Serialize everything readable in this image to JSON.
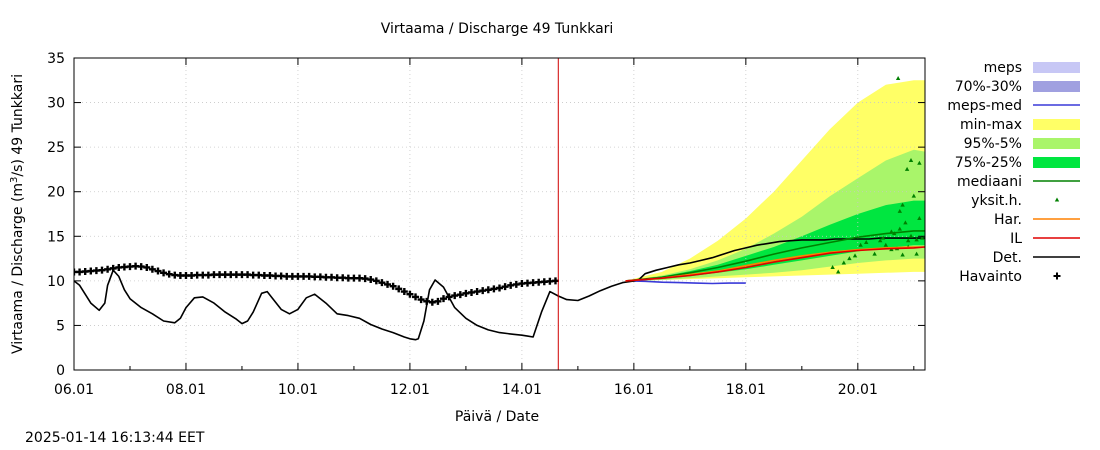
{
  "chart_data": {
    "type": "line",
    "title": "Virtaama / Discharge  49 Tunkkari",
    "ylabel_parts": [
      "Virtaama / Discharge (m",
      "3",
      "/s)  49 Tunkkari"
    ],
    "xlabel": "Päivä / Date",
    "x_unit": "days since 06.01",
    "xlim": [
      0,
      15.2
    ],
    "ylim": [
      0,
      35
    ],
    "yticks": [
      0,
      5,
      10,
      15,
      20,
      25,
      30,
      35
    ],
    "xticks": [
      {
        "x": 0,
        "label": "06.01"
      },
      {
        "x": 2,
        "label": "08.01"
      },
      {
        "x": 4,
        "label": "10.01"
      },
      {
        "x": 6,
        "label": "12.01"
      },
      {
        "x": 8,
        "label": "14.01"
      },
      {
        "x": 10,
        "label": "16.01"
      },
      {
        "x": 12,
        "label": "18.01"
      },
      {
        "x": 14,
        "label": "20.01"
      }
    ],
    "now_x": 8.65,
    "legend": [
      {
        "label": "meps",
        "kind": "band",
        "color": "#c7c7f5"
      },
      {
        "label": "70%-30%",
        "kind": "band",
        "color": "#a0a0e0"
      },
      {
        "label": "meps-med",
        "kind": "line",
        "color": "#3a3ad8"
      },
      {
        "label": "min-max",
        "kind": "band",
        "color": "#ffff66"
      },
      {
        "label": "95%-5%",
        "kind": "band",
        "color": "#a9f56a"
      },
      {
        "label": "75%-25%",
        "kind": "band",
        "color": "#00e640"
      },
      {
        "label": "mediaani",
        "kind": "line",
        "color": "#008000"
      },
      {
        "label": "yksit.h.",
        "kind": "marker",
        "color": "#008000"
      },
      {
        "label": "Har.",
        "kind": "line",
        "color": "#ff8000"
      },
      {
        "label": "IL",
        "kind": "line",
        "color": "#e00000"
      },
      {
        "label": "Det.",
        "kind": "line",
        "color": "#000000"
      },
      {
        "label": "Havainto",
        "kind": "plus",
        "color": "#000000"
      }
    ],
    "bands": {
      "x": [
        9.85,
        10.5,
        11,
        11.5,
        12,
        12.5,
        13,
        13.5,
        14,
        14.5,
        15,
        15.2
      ],
      "minmax_lo": [
        10.0,
        10.1,
        10.2,
        10.3,
        10.4,
        10.5,
        10.6,
        10.7,
        10.8,
        10.9,
        11.0,
        11.0
      ],
      "minmax_hi": [
        10.0,
        11.0,
        12.5,
        14.5,
        17.0,
        20.0,
        23.5,
        27.0,
        30.0,
        32.0,
        32.5,
        32.5
      ],
      "p95_lo": [
        10.0,
        10.1,
        10.3,
        10.5,
        10.7,
        10.9,
        11.2,
        11.6,
        12.0,
        12.3,
        12.5,
        12.5
      ],
      "p95_hi": [
        10.0,
        10.6,
        11.3,
        12.3,
        13.6,
        15.3,
        17.2,
        19.5,
        21.5,
        23.5,
        24.7,
        24.5
      ],
      "p75_lo": [
        10.0,
        10.2,
        10.5,
        10.9,
        11.3,
        11.8,
        12.3,
        12.8,
        13.3,
        13.7,
        14.0,
        14.0
      ],
      "p75_hi": [
        10.0,
        10.5,
        11.1,
        11.8,
        12.8,
        13.8,
        15.0,
        16.3,
        17.5,
        18.5,
        19.0,
        19.0
      ]
    },
    "series": [
      {
        "name": "Havainto",
        "style": "plus",
        "color": "#000000",
        "x": [
          0,
          0.1,
          0.2,
          0.3,
          0.4,
          0.5,
          0.6,
          0.7,
          0.8,
          0.9,
          1.0,
          1.1,
          1.2,
          1.3,
          1.4,
          1.5,
          1.6,
          1.7,
          1.8,
          1.9,
          2.0,
          2.1,
          2.2,
          2.3,
          2.4,
          2.5,
          2.6,
          2.7,
          2.8,
          2.9,
          3.0,
          3.1,
          3.2,
          3.3,
          3.4,
          3.5,
          3.6,
          3.7,
          3.8,
          3.9,
          4.0,
          4.1,
          4.2,
          4.3,
          4.4,
          4.5,
          4.6,
          4.7,
          4.8,
          4.9,
          5.0,
          5.1,
          5.2,
          5.3,
          5.4,
          5.5,
          5.6,
          5.7,
          5.8,
          5.9,
          6.0,
          6.1,
          6.2,
          6.3,
          6.4,
          6.5,
          6.6,
          6.7,
          6.8,
          6.9,
          7.0,
          7.1,
          7.2,
          7.3,
          7.4,
          7.5,
          7.6,
          7.7,
          7.8,
          7.9,
          8.0,
          8.1,
          8.2,
          8.3,
          8.4,
          8.5,
          8.6
        ],
        "y": [
          11.0,
          11.0,
          11.05,
          11.1,
          11.15,
          11.2,
          11.3,
          11.4,
          11.5,
          11.55,
          11.6,
          11.65,
          11.6,
          11.5,
          11.3,
          11.1,
          10.9,
          10.75,
          10.65,
          10.6,
          10.6,
          10.6,
          10.65,
          10.65,
          10.65,
          10.7,
          10.7,
          10.7,
          10.7,
          10.7,
          10.7,
          10.7,
          10.65,
          10.65,
          10.6,
          10.6,
          10.55,
          10.55,
          10.5,
          10.5,
          10.5,
          10.5,
          10.5,
          10.45,
          10.45,
          10.4,
          10.4,
          10.35,
          10.35,
          10.3,
          10.3,
          10.3,
          10.25,
          10.15,
          10.0,
          9.8,
          9.6,
          9.4,
          9.1,
          8.8,
          8.5,
          8.2,
          7.9,
          7.7,
          7.6,
          7.7,
          8.0,
          8.2,
          8.35,
          8.45,
          8.6,
          8.7,
          8.8,
          8.9,
          9.0,
          9.1,
          9.2,
          9.35,
          9.5,
          9.6,
          9.7,
          9.75,
          9.8,
          9.85,
          9.9,
          9.95,
          10.0
        ]
      },
      {
        "name": "Det.",
        "style": "line",
        "color": "#000000",
        "x": [
          0,
          0.1,
          0.2,
          0.3,
          0.45,
          0.55,
          0.6,
          0.7,
          0.8,
          0.9,
          1.0,
          1.2,
          1.4,
          1.6,
          1.8,
          1.9,
          2.0,
          2.15,
          2.3,
          2.5,
          2.7,
          2.9,
          3.0,
          3.1,
          3.2,
          3.35,
          3.45,
          3.55,
          3.7,
          3.85,
          4.0,
          4.15,
          4.3,
          4.5,
          4.7,
          4.9,
          5.1,
          5.3,
          5.5,
          5.7,
          5.9,
          6.0,
          6.1,
          6.15,
          6.25,
          6.35,
          6.45,
          6.6,
          6.8,
          7.0,
          7.2,
          7.4,
          7.6,
          7.85,
          8.0,
          8.1,
          8.2,
          8.35,
          8.5,
          8.65,
          8.8,
          9.0,
          9.2,
          9.4,
          9.6,
          9.8,
          10.0,
          10.1,
          10.2,
          10.4,
          10.6,
          10.8,
          11.0,
          11.2,
          11.4,
          11.6,
          11.8,
          12.0,
          12.2,
          12.4,
          12.6,
          12.8,
          13.0,
          13.2,
          13.4,
          13.6,
          13.8,
          14.0,
          14.2,
          14.4,
          14.6,
          14.8,
          15.0,
          15.2
        ],
        "y": [
          10.0,
          9.5,
          8.5,
          7.5,
          6.7,
          7.5,
          9.5,
          11.2,
          10.5,
          9.0,
          8.0,
          7.0,
          6.3,
          5.5,
          5.3,
          5.8,
          7.0,
          8.1,
          8.2,
          7.5,
          6.5,
          5.7,
          5.2,
          5.5,
          6.5,
          8.6,
          8.8,
          8.0,
          6.8,
          6.3,
          6.8,
          8.1,
          8.5,
          7.5,
          6.3,
          6.1,
          5.8,
          5.1,
          4.6,
          4.2,
          3.7,
          3.5,
          3.4,
          3.5,
          5.5,
          9.0,
          10.1,
          9.3,
          7.0,
          5.8,
          5.0,
          4.5,
          4.2,
          4.0,
          3.9,
          3.8,
          3.7,
          6.5,
          8.8,
          8.3,
          7.9,
          7.8,
          8.3,
          8.9,
          9.4,
          9.8,
          10.0,
          10.2,
          10.8,
          11.2,
          11.5,
          11.8,
          12.0,
          12.3,
          12.6,
          13.0,
          13.4,
          13.7,
          14.0,
          14.2,
          14.4,
          14.5,
          14.6,
          14.6,
          14.6,
          14.7,
          14.7,
          14.7,
          14.7,
          14.8,
          14.8,
          14.8,
          14.8,
          14.8
        ]
      },
      {
        "name": "mediaani",
        "style": "line",
        "color": "#008000",
        "x": [
          9.85,
          10.5,
          11,
          11.5,
          12,
          12.5,
          13,
          13.5,
          14,
          14.5,
          15,
          15.2
        ],
        "y": [
          10.0,
          10.4,
          10.9,
          11.5,
          12.2,
          13.0,
          13.7,
          14.3,
          14.9,
          15.3,
          15.6,
          15.6
        ]
      },
      {
        "name": "Har.",
        "style": "line",
        "color": "#ff8000",
        "x": [
          9.85,
          10.5,
          11,
          11.5,
          12,
          12.5,
          13,
          13.5,
          14,
          14.5,
          15,
          15.2
        ],
        "y": [
          10.0,
          10.3,
          10.7,
          11.1,
          11.7,
          12.3,
          12.8,
          13.2,
          13.5,
          13.7,
          13.8,
          13.8
        ]
      },
      {
        "name": "IL",
        "style": "line",
        "color": "#e00000",
        "x": [
          9.85,
          10.5,
          11,
          11.5,
          12,
          12.5,
          13,
          13.5,
          14,
          14.5,
          15,
          15.2
        ],
        "y": [
          10.0,
          10.3,
          10.6,
          11.0,
          11.5,
          12.1,
          12.6,
          13.1,
          13.4,
          13.6,
          13.7,
          13.8
        ]
      },
      {
        "name": "meps-med",
        "style": "line",
        "color": "#3a3ad8",
        "x": [
          9.85,
          10.2,
          10.5,
          10.8,
          11.1,
          11.4,
          11.7,
          12.0
        ],
        "y": [
          10.0,
          9.95,
          9.85,
          9.8,
          9.75,
          9.7,
          9.75,
          9.75
        ]
      },
      {
        "name": "yksit.h.",
        "style": "markers",
        "color": "#008000",
        "x": [
          13.55,
          13.65,
          13.75,
          13.85,
          13.95,
          14.05,
          14.15,
          14.3,
          14.4,
          14.45,
          14.5,
          14.6,
          14.65,
          14.7,
          14.75,
          14.8,
          14.85,
          14.9,
          14.95,
          15.0,
          15.05,
          15.1,
          15.15,
          14.6,
          14.75,
          14.9,
          14.95,
          15.1,
          14.72,
          14.88,
          15.05,
          14.8
        ],
        "y": [
          11.5,
          11.0,
          12.0,
          12.5,
          12.8,
          14.0,
          14.3,
          13.0,
          14.5,
          14.8,
          14.0,
          13.5,
          15.3,
          13.6,
          15.8,
          18.5,
          16.5,
          14.5,
          15.0,
          19.5,
          13.0,
          17.0,
          14.8,
          15.5,
          17.8,
          13.8,
          23.5,
          23.2,
          32.7,
          22.5,
          14.6,
          12.9
        ]
      }
    ]
  },
  "timestamp": "2025-01-14 16:13:44 EET"
}
